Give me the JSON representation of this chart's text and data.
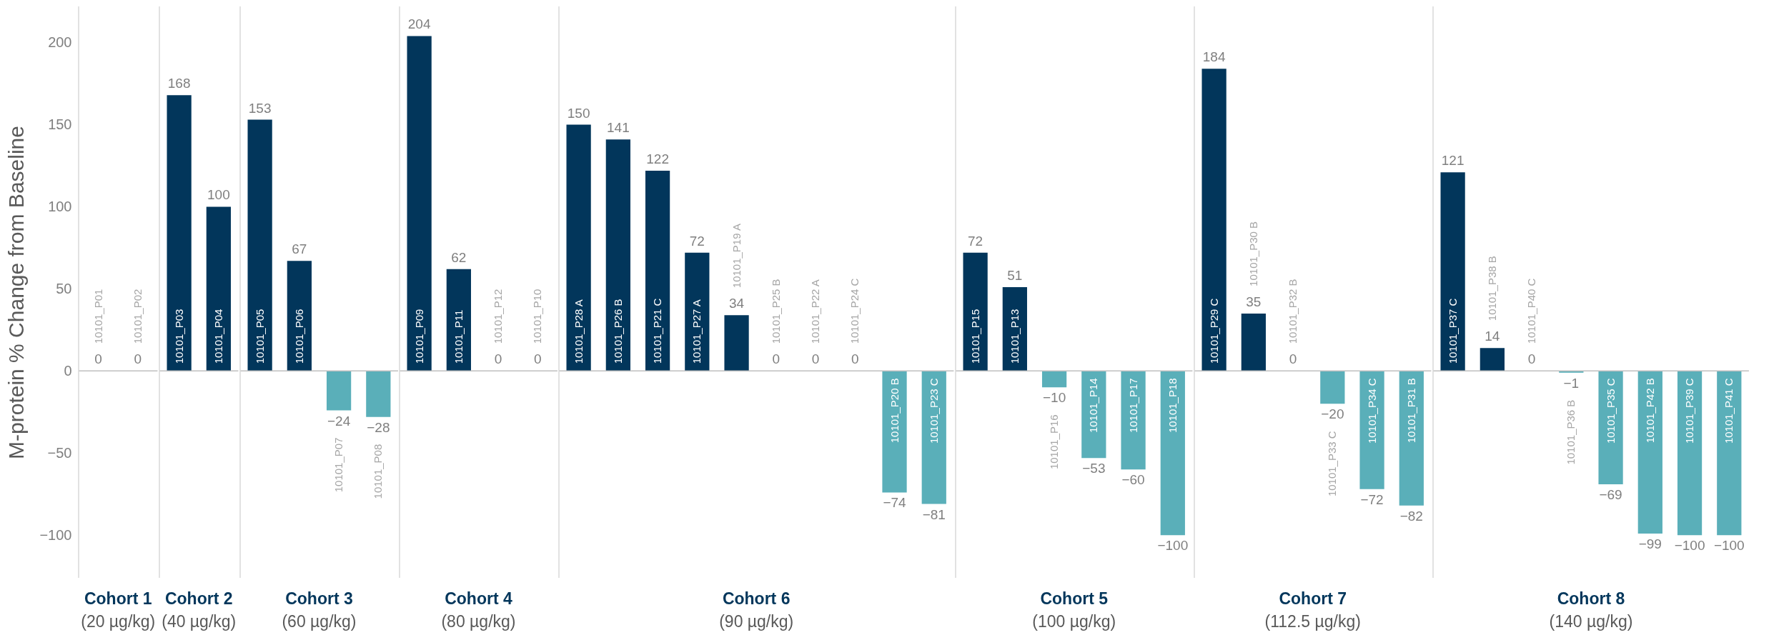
{
  "chart_data": [
    {
      "type": "bar",
      "ylabel": "M-protein % Change from Baseline",
      "xlabel": "Cohort 1",
      "annotations": [
        "(20 µg/kg)"
      ],
      "categories": [
        "10101_P01",
        "10101_P02"
      ],
      "values": [
        0,
        0
      ],
      "value_labels": [
        "0",
        "0"
      ],
      "colors": [
        "#02365b",
        "#02365b"
      ],
      "ylim": [
        -126,
        222
      ],
      "yticks": [
        {
          "value": -100,
          "label": "−100"
        },
        {
          "value": -50,
          "label": "−50"
        },
        0,
        50,
        100,
        150,
        200
      ],
      "grid": false
    },
    {
      "type": "bar",
      "xlabel": "Cohort 2",
      "annotations": [
        "(40 µg/kg)"
      ],
      "tick_labels": false,
      "ylim": [
        -126,
        222
      ],
      "categories": [
        "10101_P03",
        "10101_P04"
      ],
      "values": [
        168,
        100
      ],
      "value_labels": [
        "168",
        "100"
      ],
      "colors": [
        "#02365b",
        "#02365b"
      ]
    },
    {
      "type": "bar",
      "xlabel": "Cohort 3",
      "annotations": [
        "(60 µg/kg)"
      ],
      "tick_labels": false,
      "ylim": [
        -126,
        222
      ],
      "categories": [
        "10101_P05",
        "10101_P06",
        "10101_P07",
        "10101_P08"
      ],
      "values": [
        153,
        67,
        -24,
        -28
      ],
      "value_labels": [
        "153",
        "67",
        "−24",
        "−28"
      ],
      "colors": [
        "#02365b",
        "#02365b",
        "#5aafb9",
        "#5aafb9"
      ]
    },
    {
      "type": "bar",
      "xlabel": "Cohort 4",
      "annotations": [
        "(80 µg/kg)"
      ],
      "tick_labels": false,
      "ylim": [
        -126,
        222
      ],
      "categories": [
        "10101_P09",
        "10101_P11",
        "10101_P12",
        "10101_P10"
      ],
      "values": [
        204,
        62,
        0,
        0
      ],
      "value_labels": [
        "204",
        "62",
        "0",
        "0"
      ],
      "colors": [
        "#02365b",
        "#02365b",
        "#02365b",
        "#02365b"
      ]
    },
    {
      "type": "bar",
      "xlabel": "Cohort 6",
      "annotations": [
        "(90 µg/kg)"
      ],
      "tick_labels": false,
      "ylim": [
        -126,
        222
      ],
      "categories": [
        "10101_P28 A",
        "10101_P26 B",
        "10101_P21 C",
        "10101_P27 A",
        "10101_P19 A",
        "10101_P25 B",
        "10101_P22 A",
        "10101_P24 C",
        "10101_P20 B",
        "10101_P23 C"
      ],
      "values": [
        150,
        141,
        122,
        72,
        34,
        0,
        0,
        0,
        -74,
        -81
      ],
      "value_labels": [
        "150",
        "141",
        "122",
        "72",
        "34",
        "0",
        "0",
        "0",
        "−74",
        "−81"
      ],
      "colors": [
        "#02365b",
        "#02365b",
        "#02365b",
        "#02365b",
        "#02365b",
        "#02365b",
        "#02365b",
        "#02365b",
        "#5aafb9",
        "#5aafb9"
      ]
    },
    {
      "type": "bar",
      "xlabel": "Cohort 5",
      "annotations": [
        "(100 µg/kg)"
      ],
      "tick_labels": false,
      "ylim": [
        -126,
        222
      ],
      "categories": [
        "10101_P15",
        "10101_P13",
        "10101_P16",
        "10101_P14",
        "10101_P17",
        "10101_P18"
      ],
      "values": [
        72,
        51,
        -10,
        -53,
        -60,
        -100
      ],
      "value_labels": [
        "72",
        "51",
        "−10",
        "−53",
        "−60",
        "−100"
      ],
      "colors": [
        "#02365b",
        "#02365b",
        "#5aafb9",
        "#5aafb9",
        "#5aafb9",
        "#5aafb9"
      ]
    },
    {
      "type": "bar",
      "xlabel": "Cohort 7",
      "annotations": [
        "(112.5 µg/kg)"
      ],
      "tick_labels": false,
      "ylim": [
        -126,
        222
      ],
      "categories": [
        "10101_P29 C",
        "10101_P30 B",
        "10101_P32 B",
        "10101_P33 C",
        "10101_P34 C",
        "10101_P31 B"
      ],
      "values": [
        184,
        35,
        0,
        -20,
        -72,
        -82
      ],
      "value_labels": [
        "184",
        "35",
        "0",
        "−20",
        "−72",
        "−82"
      ],
      "colors": [
        "#02365b",
        "#02365b",
        "#02365b",
        "#5aafb9",
        "#5aafb9",
        "#5aafb9"
      ]
    },
    {
      "type": "bar",
      "xlabel": "Cohort 8",
      "annotations": [
        "(140 µg/kg)"
      ],
      "tick_labels": false,
      "ylim": [
        -126,
        222
      ],
      "categories": [
        "10101_P37 C",
        "10101_P38 B",
        "10101_P40  C",
        "10101_P36 B",
        "10101_P35 C",
        "10101_P42 B",
        "10101_P39 C",
        "10101_P41 C"
      ],
      "values": [
        121,
        14,
        0,
        -1,
        -69,
        -99,
        -100,
        -100
      ],
      "value_labels": [
        "121",
        "14",
        "0",
        "−1",
        "−69",
        "−99",
        "−100",
        "−100"
      ],
      "colors": [
        "#02365b",
        "#02365b",
        "#02365b",
        "#5aafb9",
        "#5aafb9",
        "#5aafb9",
        "#5aafb9",
        "#5aafb9"
      ]
    }
  ]
}
